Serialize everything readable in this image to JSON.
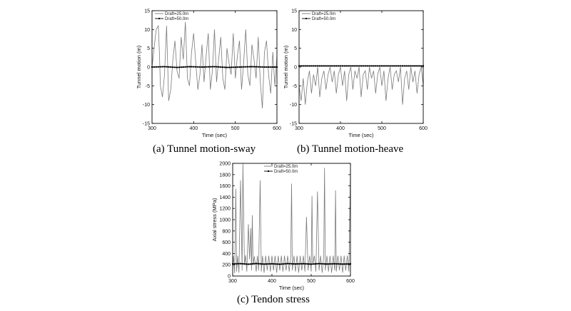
{
  "chart_data": [
    {
      "id": "sway",
      "type": "line",
      "caption": "(a)  Tunnel  motion-sway",
      "xlabel": "Time (sec)",
      "ylabel": "Tunnel motion (m)",
      "xlim": [
        300,
        600
      ],
      "ylim": [
        -15,
        15
      ],
      "xticks": [
        300,
        400,
        500,
        600
      ],
      "yticks": [
        -15,
        -10,
        -5,
        0,
        5,
        10,
        15
      ],
      "legend_position": "top-left",
      "series": [
        {
          "name": "Draft=25.0m",
          "marker": "none",
          "color": "#7a7a7a",
          "x": [
            300,
            305,
            310,
            315,
            318,
            320,
            325,
            330,
            335,
            340,
            345,
            350,
            355,
            360,
            365,
            370,
            375,
            380,
            385,
            390,
            395,
            400,
            405,
            410,
            415,
            420,
            425,
            430,
            435,
            440,
            445,
            450,
            455,
            460,
            465,
            470,
            475,
            480,
            485,
            490,
            495,
            500,
            505,
            510,
            515,
            520,
            525,
            530,
            535,
            540,
            545,
            550,
            555,
            560,
            565,
            570,
            575,
            580,
            585,
            590,
            595,
            600
          ],
          "y": [
            0,
            5,
            10,
            11,
            3,
            -5,
            -8,
            -2,
            11,
            -9,
            -6,
            2,
            7,
            -1,
            -3,
            8,
            2,
            12,
            -3,
            -5,
            4,
            9,
            1,
            -6,
            -2,
            6,
            -4,
            3,
            9,
            -6,
            -1,
            10,
            -4,
            2,
            8,
            -3,
            -6,
            5,
            1,
            -2,
            9,
            -3,
            3,
            7,
            -6,
            1,
            10,
            -2,
            -5,
            6,
            2,
            -3,
            8,
            -4,
            -11,
            4,
            7,
            -2,
            -7,
            4,
            -5,
            3
          ]
        },
        {
          "name": "Draft=50.0m",
          "marker": "square",
          "color": "#000000",
          "x": [
            300,
            330,
            360,
            390,
            420,
            450,
            480,
            510,
            540,
            570,
            600
          ],
          "y": [
            0,
            0.1,
            -0.1,
            0.1,
            0,
            0.1,
            -0.1,
            0,
            0.1,
            0,
            0
          ]
        }
      ]
    },
    {
      "id": "heave",
      "type": "line",
      "caption": "(b)  Tunnel  motion-heave",
      "xlabel": "Time (sec)",
      "ylabel": "Tunnel motion (m)",
      "xlim": [
        300,
        600
      ],
      "ylim": [
        -15,
        15
      ],
      "xticks": [
        300,
        400,
        500,
        600
      ],
      "yticks": [
        -15,
        -10,
        -5,
        0,
        5,
        10,
        15
      ],
      "legend_position": "top-left",
      "series": [
        {
          "name": "Draft=25.0m",
          "marker": "none",
          "color": "#7a7a7a",
          "x": [
            300,
            305,
            310,
            315,
            320,
            325,
            330,
            335,
            340,
            345,
            350,
            355,
            360,
            365,
            370,
            375,
            380,
            385,
            390,
            395,
            400,
            405,
            410,
            415,
            420,
            425,
            430,
            435,
            440,
            445,
            450,
            455,
            460,
            465,
            470,
            475,
            480,
            485,
            490,
            495,
            500,
            505,
            510,
            515,
            520,
            525,
            530,
            535,
            540,
            545,
            550,
            555,
            560,
            565,
            570,
            575,
            580,
            585,
            590,
            595,
            600
          ],
          "y": [
            -5,
            -9,
            -3,
            -10,
            -4,
            -1,
            -7,
            -2,
            -5,
            0,
            -8,
            -3,
            -1,
            -6,
            -2,
            0,
            -4,
            -1,
            -7,
            -2,
            0,
            -5,
            -1,
            -9,
            -2,
            0,
            -6,
            -1,
            -3,
            0,
            -8,
            -2,
            -1,
            -6,
            0,
            -3,
            -1,
            -7,
            -2,
            0,
            -5,
            -1,
            -9,
            -3,
            0,
            -6,
            -2,
            -1,
            -4,
            0,
            -10,
            -3,
            -1,
            -6,
            0,
            -4,
            -1,
            -7,
            -2,
            0,
            -5
          ]
        },
        {
          "name": "Draft=50.0m",
          "marker": "square",
          "color": "#000000",
          "x": [
            300,
            330,
            360,
            390,
            420,
            450,
            480,
            510,
            540,
            570,
            600
          ],
          "y": [
            0.3,
            0.3,
            0.3,
            0.3,
            0.3,
            0.3,
            0.3,
            0.3,
            0.3,
            0.3,
            0.3
          ]
        }
      ]
    },
    {
      "id": "tendon",
      "type": "line",
      "caption": "(c)  Tendon  stress",
      "xlabel": "Time (sec)",
      "ylabel": "Axial stress (MPa)",
      "xlim": [
        300,
        600
      ],
      "ylim": [
        0,
        2000
      ],
      "xticks": [
        300,
        400,
        500,
        600
      ],
      "yticks": [
        0,
        200,
        400,
        600,
        800,
        1000,
        1200,
        1400,
        1600,
        1800,
        2000
      ],
      "legend_position": "top-center",
      "series": [
        {
          "name": "Draft=25.0m",
          "marker": "none",
          "color": "#7a7a7a",
          "x": [
            300,
            302,
            305,
            308,
            310,
            313,
            316,
            320,
            324,
            326,
            330,
            333,
            336,
            340,
            343,
            346,
            348,
            350,
            352,
            355,
            360,
            363,
            366,
            370,
            373,
            376,
            380,
            384,
            388,
            392,
            396,
            400,
            404,
            408,
            412,
            416,
            420,
            424,
            428,
            432,
            436,
            440,
            444,
            448,
            450,
            452,
            456,
            460,
            464,
            468,
            472,
            476,
            480,
            484,
            488,
            492,
            496,
            500,
            502,
            504,
            508,
            512,
            516,
            520,
            524,
            528,
            532,
            534,
            536,
            540,
            544,
            548,
            552,
            556,
            560,
            562,
            564,
            568,
            572,
            576,
            580,
            584,
            588,
            592,
            596,
            600
          ],
          "y": [
            100,
            360,
            50,
            1550,
            80,
            360,
            60,
            1700,
            100,
            2000,
            200,
            370,
            80,
            920,
            300,
            850,
            100,
            1080,
            200,
            350,
            80,
            360,
            100,
            1700,
            80,
            360,
            60,
            360,
            100,
            360,
            80,
            360,
            100,
            360,
            60,
            360,
            100,
            360,
            80,
            360,
            100,
            360,
            80,
            360,
            1640,
            100,
            360,
            80,
            360,
            60,
            360,
            100,
            360,
            80,
            1050,
            100,
            360,
            80,
            1420,
            200,
            360,
            80,
            1500,
            100,
            360,
            60,
            360,
            1920,
            100,
            360,
            80,
            360,
            60,
            360,
            100,
            1520,
            80,
            360,
            100,
            360,
            60,
            360,
            100,
            360,
            80,
            1900
          ]
        },
        {
          "name": "Draft=50.0m",
          "marker": "square",
          "color": "#000000",
          "x": [
            300,
            320,
            340,
            360,
            380,
            400,
            420,
            440,
            460,
            480,
            500,
            520,
            540,
            560,
            580,
            600
          ],
          "y": [
            215,
            220,
            210,
            222,
            212,
            218,
            210,
            221,
            214,
            219,
            211,
            220,
            213,
            218,
            212,
            216
          ]
        }
      ]
    }
  ]
}
